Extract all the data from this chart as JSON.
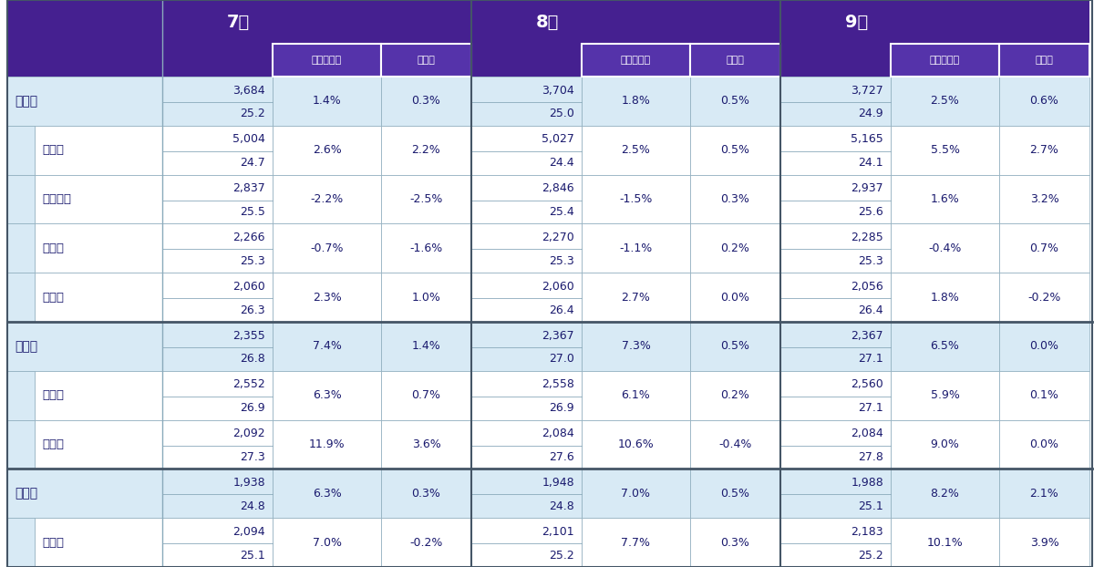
{
  "header_bg": "#452090",
  "header_text": "#FFFFFF",
  "subheader_bg": "#5533AA",
  "major_row_bg": "#D8EAF5",
  "sub_row_bg": "#FFFFFF",
  "border_color": "#8AAABB",
  "thick_border": "#445566",
  "text_dark": "#1a1a6e",
  "text_dark2": "#222222",
  "months": [
    "7月",
    "8月",
    "9月"
  ],
  "sub_cols": [
    "前年同月比",
    "前月比"
  ],
  "rows": [
    {
      "label": "首都圏",
      "indent": 0,
      "is_major": true,
      "data": [
        {
          "price": "3,684",
          "area": "25.2",
          "yoy": "1.4%",
          "mom": "0.3%"
        },
        {
          "price": "3,704",
          "area": "25.0",
          "yoy": "1.8%",
          "mom": "0.5%"
        },
        {
          "price": "3,727",
          "area": "24.9",
          "yoy": "2.5%",
          "mom": "0.6%"
        }
      ]
    },
    {
      "label": "東京都",
      "indent": 1,
      "is_major": false,
      "data": [
        {
          "price": "5,004",
          "area": "24.7",
          "yoy": "2.6%",
          "mom": "2.2%"
        },
        {
          "price": "5,027",
          "area": "24.4",
          "yoy": "2.5%",
          "mom": "0.5%"
        },
        {
          "price": "5,165",
          "area": "24.1",
          "yoy": "5.5%",
          "mom": "2.7%"
        }
      ]
    },
    {
      "label": "神奈川県",
      "indent": 1,
      "is_major": false,
      "data": [
        {
          "price": "2,837",
          "area": "25.5",
          "yoy": "-2.2%",
          "mom": "-2.5%"
        },
        {
          "price": "2,846",
          "area": "25.4",
          "yoy": "-1.5%",
          "mom": "0.3%"
        },
        {
          "price": "2,937",
          "area": "25.6",
          "yoy": "1.6%",
          "mom": "3.2%"
        }
      ]
    },
    {
      "label": "埼玉県",
      "indent": 1,
      "is_major": false,
      "data": [
        {
          "price": "2,266",
          "area": "25.3",
          "yoy": "-0.7%",
          "mom": "-1.6%"
        },
        {
          "price": "2,270",
          "area": "25.3",
          "yoy": "-1.1%",
          "mom": "0.2%"
        },
        {
          "price": "2,285",
          "area": "25.3",
          "yoy": "-0.4%",
          "mom": "0.7%"
        }
      ]
    },
    {
      "label": "千葉県",
      "indent": 1,
      "is_major": false,
      "data": [
        {
          "price": "2,060",
          "area": "26.3",
          "yoy": "2.3%",
          "mom": "1.0%"
        },
        {
          "price": "2,060",
          "area": "26.4",
          "yoy": "2.7%",
          "mom": "0.0%"
        },
        {
          "price": "2,056",
          "area": "26.4",
          "yoy": "1.8%",
          "mom": "-0.2%"
        }
      ]
    },
    {
      "label": "近畿圏",
      "indent": 0,
      "is_major": true,
      "data": [
        {
          "price": "2,355",
          "area": "26.8",
          "yoy": "7.4%",
          "mom": "1.4%"
        },
        {
          "price": "2,367",
          "area": "27.0",
          "yoy": "7.3%",
          "mom": "0.5%"
        },
        {
          "price": "2,367",
          "area": "27.1",
          "yoy": "6.5%",
          "mom": "0.0%"
        }
      ]
    },
    {
      "label": "大阪府",
      "indent": 1,
      "is_major": false,
      "data": [
        {
          "price": "2,552",
          "area": "26.9",
          "yoy": "6.3%",
          "mom": "0.7%"
        },
        {
          "price": "2,558",
          "area": "26.9",
          "yoy": "6.1%",
          "mom": "0.2%"
        },
        {
          "price": "2,560",
          "area": "27.1",
          "yoy": "5.9%",
          "mom": "0.1%"
        }
      ]
    },
    {
      "label": "兵庫県",
      "indent": 1,
      "is_major": false,
      "data": [
        {
          "price": "2,092",
          "area": "27.3",
          "yoy": "11.9%",
          "mom": "3.6%"
        },
        {
          "price": "2,084",
          "area": "27.6",
          "yoy": "10.6%",
          "mom": "-0.4%"
        },
        {
          "price": "2,084",
          "area": "27.8",
          "yoy": "9.0%",
          "mom": "0.0%"
        }
      ]
    },
    {
      "label": "中部圏",
      "indent": 0,
      "is_major": true,
      "data": [
        {
          "price": "1,938",
          "area": "24.8",
          "yoy": "6.3%",
          "mom": "0.3%"
        },
        {
          "price": "1,948",
          "area": "24.8",
          "yoy": "7.0%",
          "mom": "0.5%"
        },
        {
          "price": "1,988",
          "area": "25.1",
          "yoy": "8.2%",
          "mom": "2.1%"
        }
      ]
    },
    {
      "label": "愛知県",
      "indent": 1,
      "is_major": false,
      "data": [
        {
          "price": "2,094",
          "area": "25.1",
          "yoy": "7.0%",
          "mom": "-0.2%"
        },
        {
          "price": "2,101",
          "area": "25.2",
          "yoy": "7.7%",
          "mom": "0.3%"
        },
        {
          "price": "2,183",
          "area": "25.2",
          "yoy": "10.1%",
          "mom": "3.9%"
        }
      ]
    }
  ]
}
